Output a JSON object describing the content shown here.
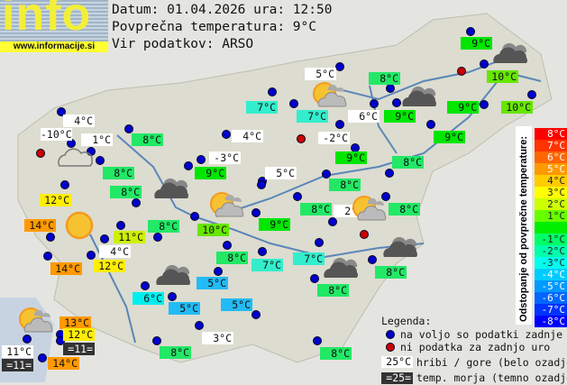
{
  "header": {
    "logo_text": "info",
    "url": "www.informacije.si",
    "date_line": "Datum: 01.04.2026 ura: 12:50",
    "avg_line": "Povprečna temperatura: 9°C",
    "source_line": "Vir podatkov: ARSO"
  },
  "palette": {
    "hill": "#ffffff",
    "sea": "#333333",
    "c14": "#ff9900",
    "c13": "#ff9900",
    "c12": "#ffee00",
    "c11": "#ccf000",
    "c10": "#66e600",
    "c9": "#00e600",
    "c8": "#22e866",
    "c7": "#33eecc",
    "c6": "#00eeee",
    "c5": "#22bbf5"
  },
  "stations": [
    {
      "t": "4°C",
      "c": "hill"
    },
    {
      "t": "-10°C",
      "c": "hill"
    },
    {
      "t": "1°C",
      "c": "hill"
    },
    {
      "t": "8°C",
      "c": "c8"
    },
    {
      "t": "8°C",
      "c": "c8"
    },
    {
      "t": "8°C",
      "c": "c8"
    },
    {
      "t": "7°C",
      "c": "c7"
    },
    {
      "t": "4°C",
      "c": "hill"
    },
    {
      "t": "-3°C",
      "c": "hill"
    },
    {
      "t": "9°C",
      "c": "c9"
    },
    {
      "t": "5°C",
      "c": "hill"
    },
    {
      "t": "5°C",
      "c": "hill"
    },
    {
      "t": "8°C",
      "c": "c8"
    },
    {
      "t": "7°C",
      "c": "c7"
    },
    {
      "t": "6°C",
      "c": "hill"
    },
    {
      "t": "9°C",
      "c": "c9"
    },
    {
      "t": "-2°C",
      "c": "hill"
    },
    {
      "t": "9°C",
      "c": "c9"
    },
    {
      "t": "8°C",
      "c": "c8"
    },
    {
      "t": "9°C",
      "c": "c9"
    },
    {
      "t": "10°C",
      "c": "c10"
    },
    {
      "t": "9°C",
      "c": "c9"
    },
    {
      "t": "10°C",
      "c": "c10"
    },
    {
      "t": "9°C",
      "c": "c9"
    },
    {
      "t": "8°C",
      "c": "c8"
    },
    {
      "t": "8°C",
      "c": "c8"
    },
    {
      "t": "2°C",
      "c": "hill"
    },
    {
      "t": "8°C",
      "c": "c8"
    },
    {
      "t": "9°C",
      "c": "c9"
    },
    {
      "t": "10°C",
      "c": "c10"
    },
    {
      "t": "8°C",
      "c": "c8"
    },
    {
      "t": "7°C",
      "c": "c7"
    },
    {
      "t": "7°C",
      "c": "c7"
    },
    {
      "t": "8°C",
      "c": "c8"
    },
    {
      "t": "8°C",
      "c": "c8"
    },
    {
      "t": "5°C",
      "c": "c5"
    },
    {
      "t": "5°C",
      "c": "c5"
    },
    {
      "t": "5°C",
      "c": "c5"
    },
    {
      "t": "6°C",
      "c": "c6"
    },
    {
      "t": "3°C",
      "c": "hill"
    },
    {
      "t": "8°C",
      "c": "c8"
    },
    {
      "t": "8°C",
      "c": "c8"
    },
    {
      "t": "12°C",
      "c": "c12"
    },
    {
      "t": "14°C",
      "c": "c14"
    },
    {
      "t": "11°C",
      "c": "c11"
    },
    {
      "t": "8°C",
      "c": "c8"
    },
    {
      "t": "4°C",
      "c": "hill"
    },
    {
      "t": "14°C",
      "c": "c14"
    },
    {
      "t": "12°C",
      "c": "c12"
    },
    {
      "t": "13°C",
      "c": "c13"
    },
    {
      "t": "12°C",
      "c": "c12"
    },
    {
      "t": "=11=",
      "c": "sea"
    },
    {
      "t": "11°C",
      "c": "hill"
    },
    {
      "t": "=11=",
      "c": "sea"
    },
    {
      "t": "14°C",
      "c": "c14"
    }
  ],
  "weather_icons": [
    "cloudy-outline",
    "overcast",
    "overcast",
    "overcast",
    "overcast",
    "overcast",
    "overcast",
    "partly-cloudy",
    "partly-cloudy",
    "partly-cloudy",
    "partly-cloudy",
    "sunny"
  ],
  "scale": {
    "title": "Odstopanje od povprečne temperature:",
    "steps": [
      {
        "t": "8°C",
        "color": "#ff0000"
      },
      {
        "t": "7°C",
        "color": "#ff3300"
      },
      {
        "t": "6°C",
        "color": "#ff6600"
      },
      {
        "t": "5°C",
        "color": "#ff9900"
      },
      {
        "t": "4°C",
        "color": "#ffcc00"
      },
      {
        "t": "3°C",
        "color": "#ffff00"
      },
      {
        "t": "2°C",
        "color": "#ccff00"
      },
      {
        "t": "1°C",
        "color": "#66ff00"
      },
      {
        "t": "",
        "color": "#00ee00"
      },
      {
        "t": "-1°C",
        "color": "#00ff66"
      },
      {
        "t": "-2°C",
        "color": "#00ffaa"
      },
      {
        "t": "-3°C",
        "color": "#00ffee"
      },
      {
        "t": "-4°C",
        "color": "#00ccff"
      },
      {
        "t": "-5°C",
        "color": "#0099ff"
      },
      {
        "t": "-6°C",
        "color": "#0066ff"
      },
      {
        "t": "-7°C",
        "color": "#0033ff"
      },
      {
        "t": "-8°C",
        "color": "#0000ff"
      }
    ]
  },
  "legend": {
    "title": "Legenda:",
    "available": "na voljo so podatki zadnje ure",
    "missing": "ni podatka za zadnjo uro",
    "hill_sample": "25°C",
    "hill_text": "hribi / gore (belo ozadje)",
    "sea_sample": "=25=",
    "sea_text": "temp. morja (temno ozadje)",
    "blue": "#0000cc",
    "red": "#cc0000"
  }
}
